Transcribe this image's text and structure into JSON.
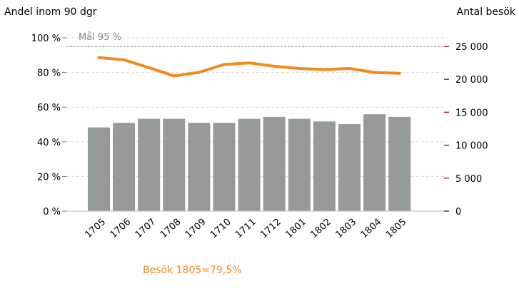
{
  "chart_data": {
    "type": "bar+line",
    "left_axis": {
      "title": "Andel inom 90 dgr",
      "ticks": [
        "100 %",
        "80 %",
        "60 %",
        "40 %",
        "20 %",
        "0 %"
      ],
      "tick_values": [
        100,
        80,
        60,
        40,
        20,
        0
      ],
      "range": [
        0,
        100
      ]
    },
    "right_axis": {
      "title": "Antal besök",
      "ticks": [
        "25 000",
        "20 000",
        "15 000",
        "10 000",
        "5 000",
        "0"
      ],
      "tick_values": [
        25000,
        20000,
        15000,
        10000,
        5000,
        0
      ],
      "range": [
        0,
        26500
      ]
    },
    "categories": [
      "1705",
      "1706",
      "1707",
      "1708",
      "1709",
      "1710",
      "1711",
      "1712",
      "1801",
      "1802",
      "1803",
      "1804",
      "1805"
    ],
    "series": [
      {
        "kind": "bar",
        "axis": "right",
        "color": "#959b97",
        "values": [
          12700,
          13400,
          14000,
          14000,
          13400,
          13400,
          14000,
          14300,
          14000,
          13600,
          13200,
          14700,
          14300
        ]
      },
      {
        "kind": "line",
        "axis": "left",
        "color": "#f28a1c",
        "values": [
          88.6,
          87.3,
          82.8,
          78.0,
          80.1,
          84.6,
          85.5,
          83.6,
          82.3,
          81.7,
          82.3,
          80.0,
          79.5
        ]
      }
    ],
    "goal": {
      "value": 95,
      "label": "Mål 95 %",
      "color": "#888888"
    },
    "grid": true,
    "footnote": "Besök 1805=79,5%"
  }
}
